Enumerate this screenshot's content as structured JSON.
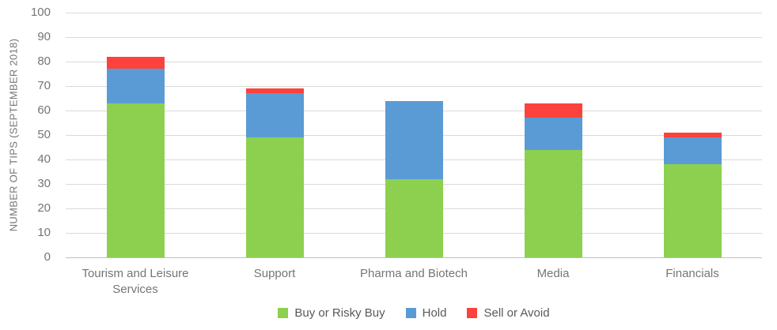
{
  "chart_data": {
    "type": "bar",
    "stacked": true,
    "title": "",
    "xlabel": "",
    "ylabel": "NUMBER OF TIPS (SEPTEMBER 2018)",
    "ylim": [
      0,
      100
    ],
    "ytick_step": 10,
    "grid": true,
    "legend_position": "bottom",
    "categories": [
      "Tourism and Leisure Services",
      "Support",
      "Pharma and Biotech",
      "Media",
      "Financials"
    ],
    "series": [
      {
        "name": "Buy or Risky Buy",
        "color": "#8DD050",
        "values": [
          63,
          49,
          32,
          44,
          38
        ]
      },
      {
        "name": "Hold",
        "color": "#5B9BD5",
        "values": [
          14,
          18,
          32,
          13,
          11
        ]
      },
      {
        "name": "Sell or Avoid",
        "color": "#FB423C",
        "values": [
          5,
          2,
          0,
          6,
          2
        ]
      }
    ],
    "totals": [
      82,
      69,
      64,
      63,
      51
    ],
    "colors": {
      "gridline": "#d9d9d9",
      "axis_line": "#bfbfbf",
      "tick_text": "#757575",
      "legend_text": "#595959",
      "background": "#ffffff"
    }
  }
}
